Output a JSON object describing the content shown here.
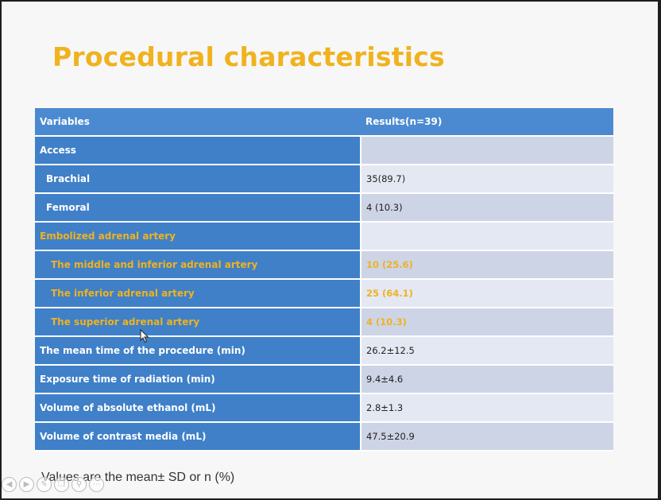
{
  "slide": {
    "title": "Procedural characteristics",
    "footnote": "Values are the mean± SD or n (%)"
  },
  "table": {
    "header": {
      "variable": "Variables",
      "result": "Results(n=39)"
    },
    "rows": [
      {
        "label": "Access",
        "value": ""
      },
      {
        "label": "Brachial",
        "value": "35(89.7)"
      },
      {
        "label": "Femoral",
        "value": "4 (10.3)"
      },
      {
        "label": "Embolized adrenal artery",
        "value": ""
      },
      {
        "label": "The middle and inferior adrenal artery",
        "value": "10 (25.6)"
      },
      {
        "label": "The inferior adrenal artery",
        "value": "25 (64.1)"
      },
      {
        "label": "The superior adrenal artery",
        "value": "4 (10.3)"
      },
      {
        "label": "The mean time of the procedure (min)",
        "value": "26.2±12.5"
      },
      {
        "label": "Exposure time of radiation (min)",
        "value": "9.4±4.6"
      },
      {
        "label": "Volume of absolute ethanol (mL)",
        "value": "2.8±1.3"
      },
      {
        "label": "Volume of contrast media (mL)",
        "value": "47.5±20.9"
      }
    ]
  },
  "colors": {
    "title": "#f0b21e",
    "highlight": "#f0b21e",
    "label_cell": "#3f80c8",
    "header_cell": "#4b8ad0",
    "value_cell_a": "#cdd4e6",
    "value_cell_b": "#e4e8f2"
  },
  "icons": [
    "prev-slide-icon",
    "next-slide-icon",
    "pen-icon",
    "copy-icon",
    "zoom-icon",
    "more-icon",
    "cursor-icon"
  ]
}
